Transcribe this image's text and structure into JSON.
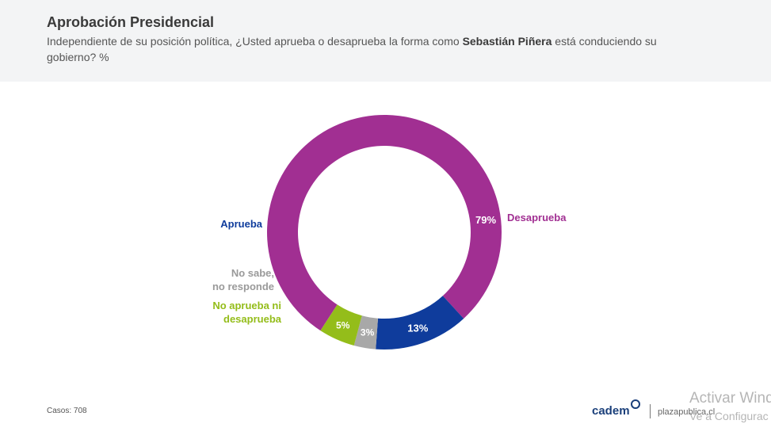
{
  "header": {
    "title": "Aprobación Presidencial",
    "subtitle_part1": "Independiente de su posición política, ¿Usted aprueba o desaprueba la forma como ",
    "subtitle_bold": "Sebastián Piñera",
    "subtitle_part2": " está conduciendo su gobierno? %"
  },
  "chart_data": {
    "type": "pie",
    "donut": true,
    "slices": [
      {
        "key": "desaprueba",
        "label": "Desaprueba",
        "value": 79,
        "value_label": "79%",
        "color": "#a12f92"
      },
      {
        "key": "aprueba",
        "label": "Aprueba",
        "value": 13,
        "value_label": "13%",
        "color": "#0f3c9c"
      },
      {
        "key": "nosabe",
        "label": "No sabe,\nno responde",
        "value": 3,
        "value_label": "3%",
        "color": "#a8a8a8"
      },
      {
        "key": "ni",
        "label": "No aprueba ni\ndesaprueba",
        "value": 5,
        "value_label": "5%",
        "color": "#94bd1a"
      }
    ]
  },
  "footer": {
    "cases": "Casos: 708",
    "brand": "cadem",
    "site": "plazapublica.cl"
  },
  "watermark": {
    "line1": "Activar Wind",
    "line2": "Ve a Configurac"
  }
}
